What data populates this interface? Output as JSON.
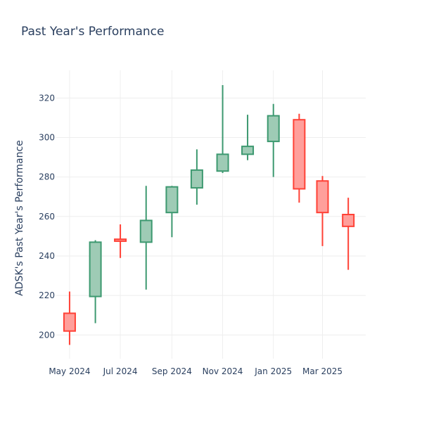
{
  "chart_data": {
    "type": "candlestick",
    "title": "Past Year's Performance",
    "ylabel": "ADSK's Past Year's Performance",
    "xlabel": "",
    "ylim": [
      188,
      334
    ],
    "yticks": [
      200,
      220,
      240,
      260,
      280,
      300,
      320
    ],
    "x_tick_labels": [
      "May 2024",
      "Jul 2024",
      "Sep 2024",
      "Nov 2024",
      "Jan 2025",
      "Mar 2025"
    ],
    "x_tick_dates": [
      "2024-05-01",
      "2024-07-01",
      "2024-09-01",
      "2024-11-01",
      "2025-01-01",
      "2025-03-01"
    ],
    "xlim": [
      "2024-04-15",
      "2025-04-22"
    ],
    "grid": true,
    "colors": {
      "increasing": "#3d9970",
      "increasing_fill": "#9ecbb5",
      "decreasing": "#ff4136",
      "decreasing_fill": "#ff9f9b"
    },
    "candles": [
      {
        "date": "2024-05-01",
        "open": 211,
        "high": 222,
        "low": 195,
        "close": 202
      },
      {
        "date": "2024-06-01",
        "open": 219.5,
        "high": 248,
        "low": 206,
        "close": 247
      },
      {
        "date": "2024-07-01",
        "open": 248.5,
        "high": 256,
        "low": 239,
        "close": 247.5
      },
      {
        "date": "2024-08-01",
        "open": 247,
        "high": 275.5,
        "low": 223,
        "close": 258
      },
      {
        "date": "2024-09-01",
        "open": 262,
        "high": 275.5,
        "low": 249.5,
        "close": 275
      },
      {
        "date": "2024-10-01",
        "open": 274.5,
        "high": 294,
        "low": 266,
        "close": 283.5
      },
      {
        "date": "2024-11-01",
        "open": 283,
        "high": 326.5,
        "low": 282,
        "close": 291.5
      },
      {
        "date": "2024-12-01",
        "open": 291.5,
        "high": 311.5,
        "low": 288.5,
        "close": 295.5
      },
      {
        "date": "2025-01-01",
        "open": 298,
        "high": 317,
        "low": 280,
        "close": 311
      },
      {
        "date": "2025-02-01",
        "open": 309,
        "high": 312,
        "low": 267,
        "close": 274
      },
      {
        "date": "2025-03-01",
        "open": 278,
        "high": 280.5,
        "low": 245,
        "close": 262
      },
      {
        "date": "2025-04-01",
        "open": 261,
        "high": 269.5,
        "low": 233,
        "close": 255
      }
    ]
  }
}
